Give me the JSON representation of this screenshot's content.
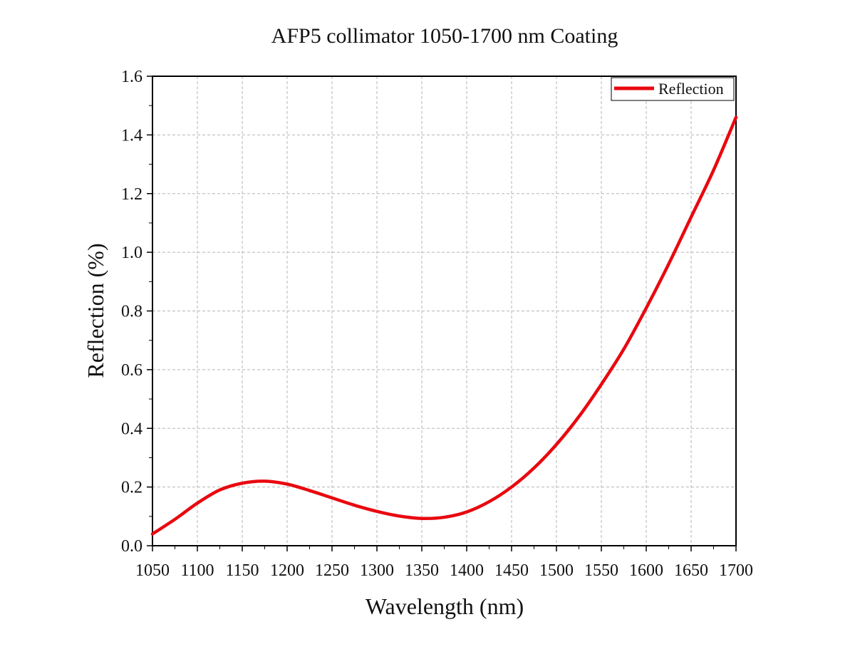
{
  "chart_data": {
    "type": "line",
    "title": "AFP5 collimator 1050-1700 nm Coating",
    "xlabel": "Wavelength (nm)",
    "ylabel": "Reflection (%)",
    "xlim": [
      1050,
      1700
    ],
    "ylim": [
      0,
      1.6
    ],
    "xticks": [
      "1050",
      "1100",
      "1150",
      "1200",
      "1250",
      "1300",
      "1350",
      "1400",
      "1450",
      "1500",
      "1550",
      "1600",
      "1650",
      "1700"
    ],
    "yticks": [
      "0.0",
      "0.2",
      "0.4",
      "0.6",
      "0.8",
      "1.0",
      "1.2",
      "1.4",
      "1.6"
    ],
    "grid": true,
    "legend_position": "top-right",
    "series": [
      {
        "name": "Reflection",
        "color": "#e8090f",
        "x": [
          1050,
          1075,
          1100,
          1125,
          1150,
          1175,
          1200,
          1225,
          1250,
          1275,
          1300,
          1325,
          1350,
          1375,
          1400,
          1425,
          1450,
          1475,
          1500,
          1525,
          1550,
          1575,
          1600,
          1625,
          1650,
          1675,
          1700
        ],
        "y": [
          0.04,
          0.09,
          0.145,
          0.19,
          0.213,
          0.22,
          0.21,
          0.188,
          0.163,
          0.138,
          0.117,
          0.101,
          0.093,
          0.097,
          0.115,
          0.15,
          0.2,
          0.265,
          0.345,
          0.44,
          0.55,
          0.67,
          0.81,
          0.96,
          1.12,
          1.28,
          1.46
        ]
      }
    ]
  }
}
